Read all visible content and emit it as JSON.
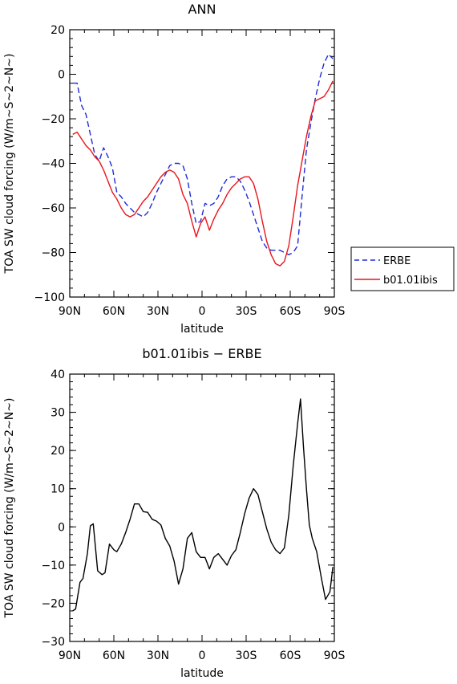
{
  "chart_data": [
    {
      "type": "line",
      "title": "ANN",
      "xlabel": "latitude",
      "ylabel": "TOA SW cloud forcing (W/m~S~2~N~)",
      "xlim": [
        90,
        -90
      ],
      "ylim": [
        -100,
        20
      ],
      "xticks": [
        90,
        60,
        30,
        0,
        -30,
        -60,
        -90
      ],
      "xtick_labels": [
        "90N",
        "60N",
        "30N",
        "0",
        "30S",
        "60S",
        "90S"
      ],
      "yticks": [
        -100,
        -80,
        -60,
        -40,
        -20,
        0,
        20
      ],
      "ytick_labels": [
        "−100",
        "−80",
        "−60",
        "−40",
        "−20",
        "0",
        "20"
      ],
      "legend_position": "right-outside",
      "series": [
        {
          "name": "ERBE",
          "color": "#1f2bd6",
          "dash": "dashed",
          "points": [
            [
              88,
              -4
            ],
            [
              85,
              -4
            ],
            [
              82,
              -14
            ],
            [
              79,
              -18
            ],
            [
              76,
              -27
            ],
            [
              73,
              -36
            ],
            [
              70,
              -39
            ],
            [
              67,
              -33
            ],
            [
              64,
              -37
            ],
            [
              61,
              -42
            ],
            [
              58,
              -53
            ],
            [
              55,
              -55
            ],
            [
              52,
              -58
            ],
            [
              49,
              -60
            ],
            [
              46,
              -62
            ],
            [
              43,
              -63
            ],
            [
              40,
              -64
            ],
            [
              37,
              -62
            ],
            [
              34,
              -58
            ],
            [
              31,
              -53
            ],
            [
              28,
              -49
            ],
            [
              25,
              -45
            ],
            [
              22,
              -41
            ],
            [
              19,
              -40
            ],
            [
              16,
              -40
            ],
            [
              13,
              -41
            ],
            [
              10,
              -47
            ],
            [
              7,
              -58
            ],
            [
              4,
              -67
            ],
            [
              1,
              -66
            ],
            [
              -2,
              -58
            ],
            [
              -5,
              -59
            ],
            [
              -8,
              -58
            ],
            [
              -11,
              -55
            ],
            [
              -14,
              -50
            ],
            [
              -17,
              -47
            ],
            [
              -20,
              -46
            ],
            [
              -23,
              -46
            ],
            [
              -26,
              -48
            ],
            [
              -29,
              -52
            ],
            [
              -32,
              -57
            ],
            [
              -35,
              -63
            ],
            [
              -38,
              -69
            ],
            [
              -41,
              -75
            ],
            [
              -44,
              -78
            ],
            [
              -47,
              -79
            ],
            [
              -50,
              -79
            ],
            [
              -53,
              -79
            ],
            [
              -56,
              -80
            ],
            [
              -59,
              -81
            ],
            [
              -62,
              -80
            ],
            [
              -65,
              -77
            ],
            [
              -68,
              -55
            ],
            [
              -71,
              -34
            ],
            [
              -74,
              -22
            ],
            [
              -77,
              -11
            ],
            [
              -80,
              -2
            ],
            [
              -83,
              5
            ],
            [
              -86,
              9
            ],
            [
              -89,
              7
            ]
          ]
        },
        {
          "name": "b01.01ibis",
          "color": "#e8141c",
          "dash": "solid",
          "points": [
            [
              88,
              -27
            ],
            [
              85,
              -26
            ],
            [
              82,
              -29
            ],
            [
              79,
              -32
            ],
            [
              76,
              -34
            ],
            [
              73,
              -37
            ],
            [
              70,
              -39
            ],
            [
              67,
              -43
            ],
            [
              64,
              -48
            ],
            [
              61,
              -53
            ],
            [
              58,
              -56
            ],
            [
              55,
              -60
            ],
            [
              52,
              -63
            ],
            [
              49,
              -64
            ],
            [
              46,
              -63
            ],
            [
              43,
              -60
            ],
            [
              40,
              -57
            ],
            [
              37,
              -55
            ],
            [
              34,
              -52
            ],
            [
              31,
              -49
            ],
            [
              28,
              -46
            ],
            [
              25,
              -44
            ],
            [
              22,
              -43
            ],
            [
              19,
              -44
            ],
            [
              16,
              -47
            ],
            [
              13,
              -54
            ],
            [
              10,
              -58
            ],
            [
              7,
              -66
            ],
            [
              4,
              -73
            ],
            [
              1,
              -67
            ],
            [
              -2,
              -64
            ],
            [
              -5,
              -70
            ],
            [
              -8,
              -65
            ],
            [
              -11,
              -61
            ],
            [
              -14,
              -58
            ],
            [
              -17,
              -54
            ],
            [
              -20,
              -51
            ],
            [
              -23,
              -49
            ],
            [
              -26,
              -47
            ],
            [
              -29,
              -46
            ],
            [
              -32,
              -46
            ],
            [
              -35,
              -49
            ],
            [
              -38,
              -56
            ],
            [
              -41,
              -66
            ],
            [
              -44,
              -75
            ],
            [
              -47,
              -81
            ],
            [
              -50,
              -85
            ],
            [
              -53,
              -86
            ],
            [
              -56,
              -84
            ],
            [
              -59,
              -77
            ],
            [
              -62,
              -64
            ],
            [
              -65,
              -50
            ],
            [
              -68,
              -39
            ],
            [
              -71,
              -28
            ],
            [
              -74,
              -19
            ],
            [
              -77,
              -12
            ],
            [
              -80,
              -11
            ],
            [
              -83,
              -10
            ],
            [
              -86,
              -7
            ],
            [
              -89,
              -3
            ]
          ]
        }
      ]
    },
    {
      "type": "line",
      "title": "b01.01ibis − ERBE",
      "xlabel": "latitude",
      "ylabel": "TOA SW cloud forcing (W/m~S~2~N~)",
      "xlim": [
        90,
        -90
      ],
      "ylim": [
        -30,
        40
      ],
      "xticks": [
        90,
        60,
        30,
        0,
        -30,
        -60,
        -90
      ],
      "xtick_labels": [
        "90N",
        "60N",
        "30N",
        "0",
        "30S",
        "60S",
        "90S"
      ],
      "yticks": [
        -30,
        -20,
        -10,
        0,
        10,
        20,
        30,
        40
      ],
      "ytick_labels": [
        "−30",
        "−20",
        "−10",
        "0",
        "10",
        "20",
        "30",
        "40"
      ],
      "series": [
        {
          "color": "#000000",
          "dash": "solid",
          "points": [
            [
              88,
              -22
            ],
            [
              86,
              -21.5
            ],
            [
              83,
              -14.5
            ],
            [
              81,
              -13.5
            ],
            [
              78,
              -7
            ],
            [
              76,
              0.3
            ],
            [
              74,
              0.8
            ],
            [
              71,
              -11.5
            ],
            [
              68,
              -12.5
            ],
            [
              66,
              -12
            ],
            [
              63,
              -4.5
            ],
            [
              60,
              -6
            ],
            [
              58,
              -6.5
            ],
            [
              55,
              -4.5
            ],
            [
              52,
              -1.5
            ],
            [
              49,
              2
            ],
            [
              46,
              6
            ],
            [
              43,
              6
            ],
            [
              40,
              4
            ],
            [
              37,
              3.8
            ],
            [
              34,
              2
            ],
            [
              31,
              1.5
            ],
            [
              28,
              0.5
            ],
            [
              25,
              -3
            ],
            [
              22,
              -5
            ],
            [
              19,
              -9
            ],
            [
              16,
              -15
            ],
            [
              13,
              -11
            ],
            [
              10,
              -3
            ],
            [
              7,
              -1.5
            ],
            [
              4,
              -6.5
            ],
            [
              1,
              -8
            ],
            [
              -2,
              -8
            ],
            [
              -5,
              -11
            ],
            [
              -8,
              -8
            ],
            [
              -11,
              -7
            ],
            [
              -14,
              -8.5
            ],
            [
              -17,
              -10
            ],
            [
              -20,
              -7.5
            ],
            [
              -23,
              -6
            ],
            [
              -26,
              -1.5
            ],
            [
              -29,
              3.5
            ],
            [
              -32,
              7.5
            ],
            [
              -35,
              10
            ],
            [
              -38,
              8.5
            ],
            [
              -41,
              4
            ],
            [
              -44,
              -0.5
            ],
            [
              -47,
              -4
            ],
            [
              -50,
              -6
            ],
            [
              -53,
              -7
            ],
            [
              -56,
              -5.5
            ],
            [
              -59,
              3
            ],
            [
              -62,
              16
            ],
            [
              -65,
              27
            ],
            [
              -67,
              33.5
            ],
            [
              -69,
              21
            ],
            [
              -71,
              10
            ],
            [
              -73,
              0.5
            ],
            [
              -75,
              -3
            ],
            [
              -78,
              -6.5
            ],
            [
              -81,
              -13
            ],
            [
              -84,
              -19
            ],
            [
              -87,
              -17
            ],
            [
              -89,
              -10.5
            ]
          ]
        }
      ]
    }
  ]
}
